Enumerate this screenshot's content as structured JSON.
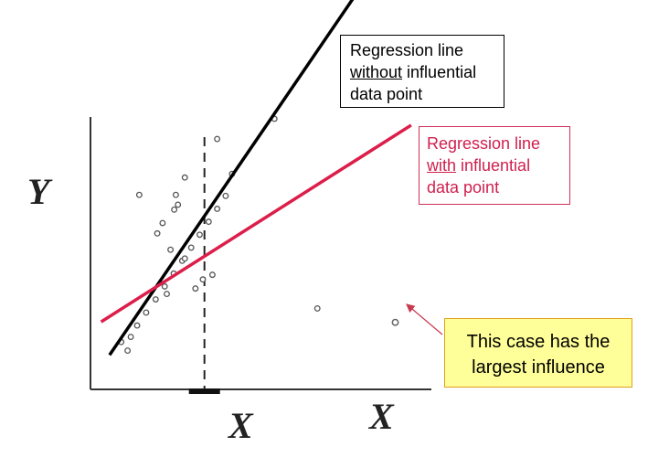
{
  "labels": {
    "y_axis": "Y",
    "x_axis": "X",
    "x_mean": "X"
  },
  "callouts": {
    "without": {
      "line1": "Regression line",
      "line2_u": "without",
      "line2_rest": " influential",
      "line3": "data point"
    },
    "with": {
      "line1": "Regression line",
      "line2_u": "with",
      "line2_rest": " influential",
      "line3": "data point"
    },
    "influence": {
      "line1": "This case has the",
      "line2": "largest influence"
    }
  },
  "colors": {
    "without_line": "#000000",
    "with_line": "#dc1e4a",
    "callout_fill": "#ffff99",
    "callout_border": "#e0a020",
    "point": "#555555"
  },
  "chart_data": {
    "type": "scatter",
    "points": [
      [
        0.58,
        1.83
      ],
      [
        0.7,
        1.5
      ],
      [
        0.76,
        2.03
      ],
      [
        0.88,
        2.47
      ],
      [
        1.05,
        2.97
      ],
      [
        1.23,
        3.48
      ],
      [
        1.4,
        3.98
      ],
      [
        1.57,
        4.48
      ],
      [
        1.73,
        4.97
      ],
      [
        1.9,
        5.48
      ],
      [
        2.06,
        5.98
      ],
      [
        2.23,
        6.48
      ],
      [
        2.39,
        6.98
      ],
      [
        2.55,
        7.48
      ],
      [
        1.26,
        6.03
      ],
      [
        1.65,
        7.14
      ],
      [
        1.78,
        8.19
      ],
      [
        2.39,
        9.68
      ],
      [
        0.92,
        7.52
      ],
      [
        1.61,
        7.52
      ],
      [
        1.36,
        6.43
      ],
      [
        1.58,
        6.95
      ],
      [
        1.51,
        5.4
      ],
      [
        1.78,
        5.06
      ],
      [
        1.44,
        3.69
      ],
      [
        1.98,
        3.9
      ],
      [
        2.12,
        4.25
      ],
      [
        2.3,
        4.43
      ],
      [
        2.67,
        8.33
      ],
      [
        3.47,
        10.46
      ],
      [
        4.28,
        3.13
      ]
    ],
    "influential_point": [
      5.75,
      2.59
    ],
    "mean_x": 2.15,
    "xlim": [
      0,
      6.5
    ],
    "ylim": [
      0,
      12
    ],
    "lines": [
      {
        "slope": 3.0,
        "intercept": 0.25,
        "x_range": [
          0.36,
          5.75
        ]
      },
      {
        "slope": 1.3,
        "intercept": 2.35,
        "x_range": [
          0.2,
          6.05
        ]
      }
    ]
  }
}
